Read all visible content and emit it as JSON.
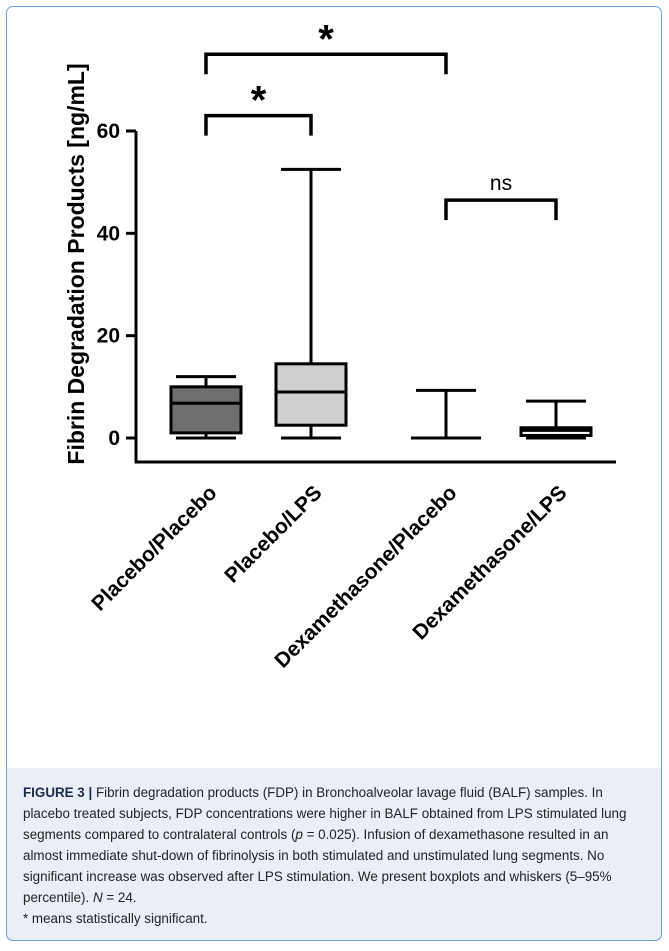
{
  "chart_data": {
    "type": "boxplot",
    "ylabel": "Fibrin Degradation Products [ng/mL]",
    "xlabel": "",
    "ylim": [
      -5,
      60
    ],
    "yticks": [
      0,
      20,
      40,
      60
    ],
    "categories": [
      "Placebo/Placebo",
      "Placebo/LPS",
      "Dexamethasone/Placebo",
      "Dexamethasone/LPS"
    ],
    "boxes": [
      {
        "name": "Placebo/Placebo",
        "whisker_low": 0,
        "q1": 1,
        "median": 6.8,
        "q3": 10,
        "whisker_high": 12,
        "fill": "#6e6e6e"
      },
      {
        "name": "Placebo/LPS",
        "whisker_low": 0,
        "q1": 2.5,
        "median": 9,
        "q3": 14.5,
        "whisker_high": 52.5,
        "fill": "#cfcfcf"
      },
      {
        "name": "Dexamethasone/Placebo",
        "whisker_low": 0,
        "q1": 0,
        "median": 0,
        "q3": 0,
        "whisker_high": 9.3,
        "fill": "#ffffff"
      },
      {
        "name": "Dexamethasone/LPS",
        "whisker_low": 0,
        "q1": 0.5,
        "median": 1.5,
        "q3": 2,
        "whisker_high": 7.2,
        "fill": "#ffffff"
      }
    ],
    "significance": [
      {
        "from": "Placebo/Placebo",
        "to": "Placebo/LPS",
        "label": "*",
        "level": 63
      },
      {
        "from": "Placebo/Placebo",
        "to": "Dexamethasone/Placebo",
        "label": "*",
        "level": 75
      },
      {
        "from": "Dexamethasone/Placebo",
        "to": "Dexamethasone/LPS",
        "label": "ns",
        "level": 46.5
      }
    ]
  },
  "caption": {
    "label": "FIGURE 3 |",
    "text_1": " Fibrin degradation products (FDP) in Bronchoalveolar lavage fluid (BALF) samples. In placebo treated subjects, FDP concentrations were higher in BALF obtained from LPS stimulated lung segments compared to contralateral controls (",
    "p_symbol": "p",
    "text_2": " = 0.025). Infusion of dexamethasone resulted in an almost immediate shut-down of fibrinolysis in both stimulated and unstimulated lung segments. No significant increase was observed after LPS stimulation. We present boxplots and whiskers (5–95% percentile). ",
    "n_symbol": "N",
    "text_3": " = 24.",
    "text_4": "* means statistically significant."
  }
}
